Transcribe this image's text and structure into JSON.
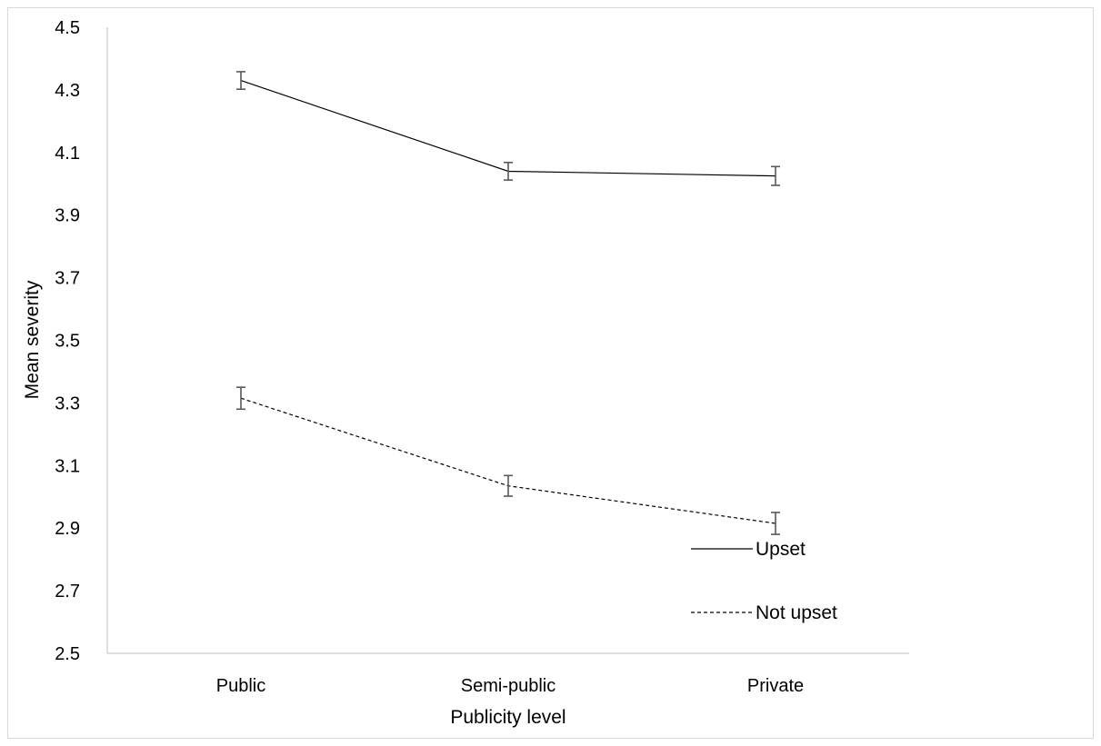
{
  "chart_data": {
    "type": "line",
    "title": "",
    "xlabel": "Publicity level",
    "ylabel": "Mean severity",
    "categories": [
      "Public",
      "Semi-public",
      "Private"
    ],
    "ylim": [
      2.5,
      4.5
    ],
    "yticks": [
      "2.5",
      "2.7",
      "2.9",
      "3.1",
      "3.3",
      "3.5",
      "3.7",
      "3.9",
      "4.1",
      "4.3",
      "4.5"
    ],
    "grid": false,
    "legend_position": "bottom-right",
    "series": [
      {
        "name": "Upset",
        "line_style": "solid",
        "color": "#000000",
        "values": [
          4.33,
          4.04,
          4.025
        ],
        "error": [
          0.028,
          0.028,
          0.03
        ]
      },
      {
        "name": "Not upset",
        "line_style": "dashed",
        "color": "#000000",
        "values": [
          3.315,
          3.035,
          2.915
        ],
        "error": [
          0.035,
          0.033,
          0.035
        ]
      }
    ],
    "error_bar_color": "#595959",
    "axis_color": "#bfbfbf"
  }
}
